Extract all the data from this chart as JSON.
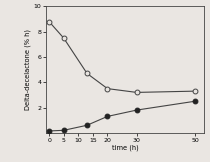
{
  "title": "",
  "xlabel": "time (h)",
  "ylabel": "Delta-decelactone (% h)",
  "x_open": [
    0,
    5,
    13,
    20,
    30,
    50
  ],
  "y_open": [
    8.8,
    7.5,
    4.7,
    3.5,
    3.2,
    3.3
  ],
  "x_filled": [
    0,
    5,
    13,
    20,
    30,
    50
  ],
  "y_filled": [
    0.15,
    0.2,
    0.6,
    1.3,
    1.8,
    2.5
  ],
  "xlim": [
    -1,
    53
  ],
  "ylim": [
    0,
    10
  ],
  "xticks": [
    0,
    5,
    10,
    15,
    20,
    30,
    50
  ],
  "yticks": [
    2,
    4,
    6,
    8,
    10
  ],
  "line_color": "#444444",
  "open_marker_facecolor": "#e8e4e0",
  "open_marker_edgecolor": "#444444",
  "filled_marker_color": "#222222",
  "marker_size": 3.5,
  "line_width": 0.8,
  "tick_fontsize": 4.5,
  "label_fontsize": 4.8,
  "bg_color": "#eae6e2"
}
